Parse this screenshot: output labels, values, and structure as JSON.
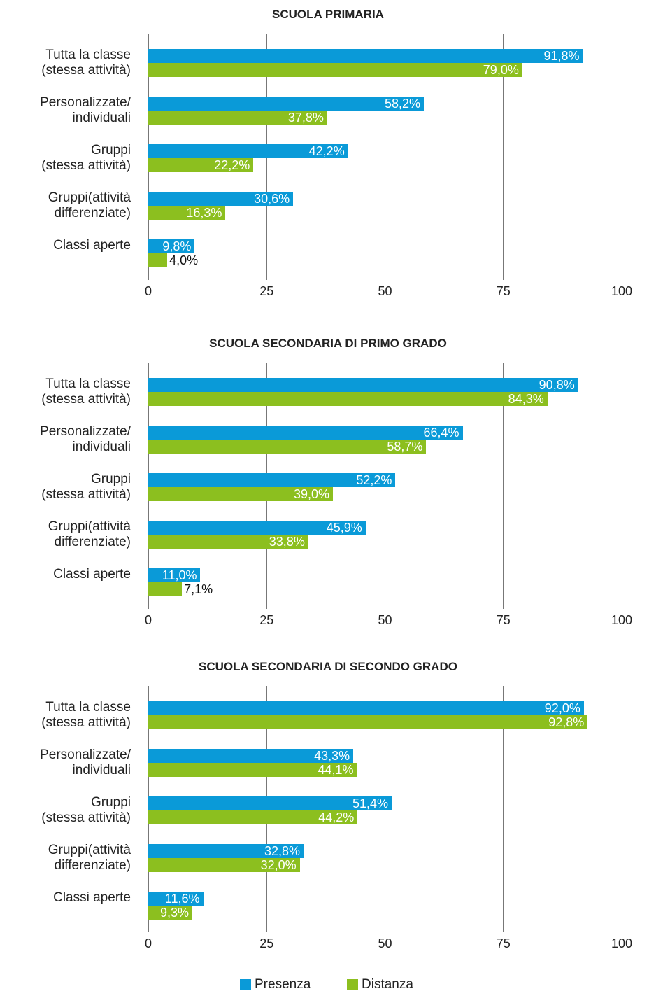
{
  "chart_data": [
    {
      "type": "bar",
      "orientation": "horizontal",
      "title": "SCUOLA PRIMARIA",
      "categories": [
        "Tutta la classe\n(stessa attività)",
        "Personalizzate/\nindividuali",
        "Gruppi\n(stessa attività)",
        "Gruppi(attività\ndifferenziate)",
        "Classi aperte"
      ],
      "series": [
        {
          "name": "Presenza",
          "color": "#0a9ad8",
          "values": [
            91.8,
            58.2,
            42.2,
            30.6,
            9.8
          ],
          "value_labels": [
            "91,8%",
            "58,2%",
            "42,2%",
            "30,6%",
            "9,8%"
          ]
        },
        {
          "name": "Distanza",
          "color": "#8cbf1f",
          "values": [
            79.0,
            37.8,
            22.2,
            16.3,
            4.0
          ],
          "value_labels": [
            "79,0%",
            "37,8%",
            "22,2%",
            "16,3%",
            "4,0%"
          ]
        }
      ],
      "xlim": [
        0,
        100
      ],
      "xticks": [
        0,
        25,
        50,
        75,
        100
      ],
      "grid": true,
      "legend": "bottom"
    },
    {
      "type": "bar",
      "orientation": "horizontal",
      "title": "SCUOLA SECONDARIA DI PRIMO GRADO",
      "categories": [
        "Tutta la classe\n(stessa attività)",
        "Personalizzate/\nindividuali",
        "Gruppi\n(stessa attività)",
        "Gruppi(attività\ndifferenziate)",
        "Classi aperte"
      ],
      "series": [
        {
          "color": "#0a9ad8",
          "values": [
            90.8,
            66.4,
            52.2,
            45.9,
            11.0
          ],
          "value_labels": [
            "90,8%",
            "66,4%",
            "52,2%",
            "45,9%",
            "11,0%"
          ]
        },
        {
          "color": "#8cbf1f",
          "values": [
            84.3,
            58.7,
            39.0,
            33.8,
            7.1
          ],
          "value_labels": [
            "84,3%",
            "58,7%",
            "39,0%",
            "33,8%",
            "7,1%"
          ]
        }
      ],
      "xlim": [
        0,
        100
      ],
      "xticks": [
        0,
        25,
        50,
        75,
        100
      ],
      "grid": true
    },
    {
      "type": "bar",
      "orientation": "horizontal",
      "title": "SCUOLA SECONDARIA DI SECONDO GRADO",
      "categories": [
        "Tutta la classe\n(stessa attività)",
        "Personalizzate/\nindividuali",
        "Gruppi\n(stessa attività)",
        "Gruppi(attività\ndifferenziate)",
        "Classi aperte"
      ],
      "series": [
        {
          "color": "#0a9ad8",
          "values": [
            92.0,
            43.3,
            51.4,
            32.8,
            11.6
          ],
          "value_labels": [
            "92,0%",
            "43,3%",
            "51,4%",
            "32,8%",
            "11,6%"
          ]
        },
        {
          "color": "#8cbf1f",
          "values": [
            92.8,
            44.1,
            44.2,
            32.0,
            9.3
          ],
          "value_labels": [
            "92,8%",
            "44,1%",
            "44,2%",
            "32,0%",
            "9,3%"
          ]
        }
      ],
      "xlim": [
        0,
        100
      ],
      "xticks": [
        0,
        25,
        50,
        75,
        100
      ],
      "grid": true
    }
  ]
}
